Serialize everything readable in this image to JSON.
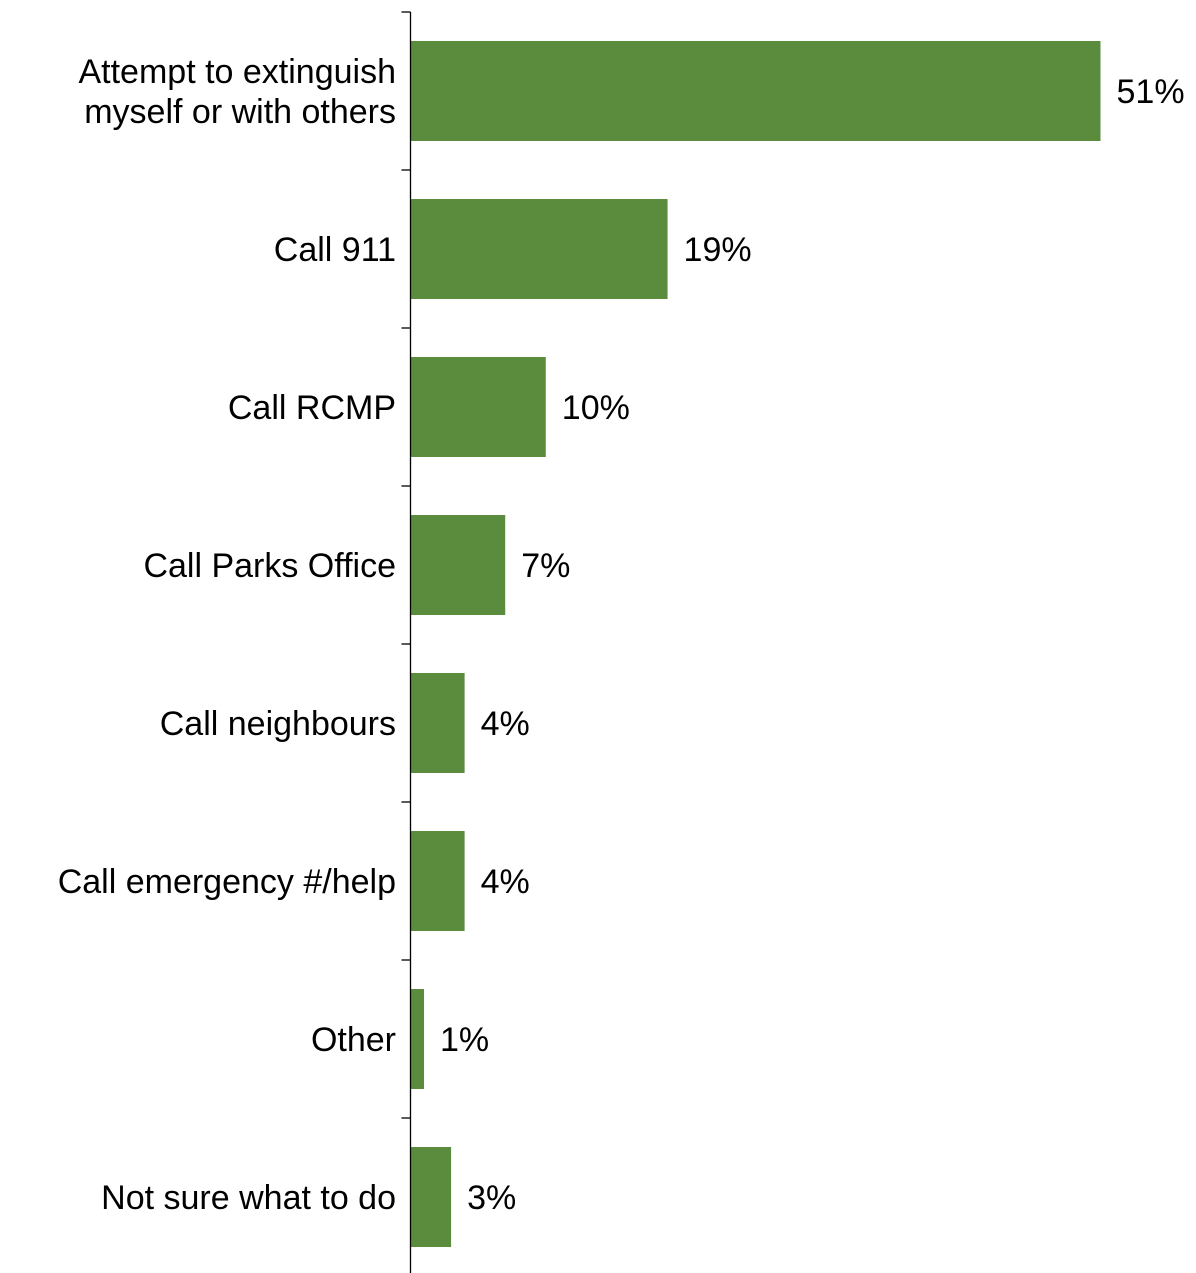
{
  "chart_data": {
    "type": "bar",
    "orientation": "horizontal",
    "categories": [
      [
        "Attempt to extinguish",
        "myself or with others"
      ],
      [
        "Call 911"
      ],
      [
        "Call RCMP"
      ],
      [
        "Call Parks Office"
      ],
      [
        "Call neighbours"
      ],
      [
        "Call emergency #/help"
      ],
      [
        "Other"
      ],
      [
        "Not sure what to do"
      ]
    ],
    "values": [
      51,
      19,
      10,
      7,
      4,
      4,
      1,
      3
    ],
    "value_labels": [
      "51%",
      "19%",
      "10%",
      "7%",
      "4%",
      "4%",
      "1%",
      "3%"
    ],
    "unit": "%",
    "xlim": [
      0,
      51
    ],
    "bar_color": "#5b8c3e",
    "axis_color": "#000000",
    "title": "",
    "xlabel": "",
    "ylabel": "",
    "grid": false,
    "legend": "none"
  }
}
